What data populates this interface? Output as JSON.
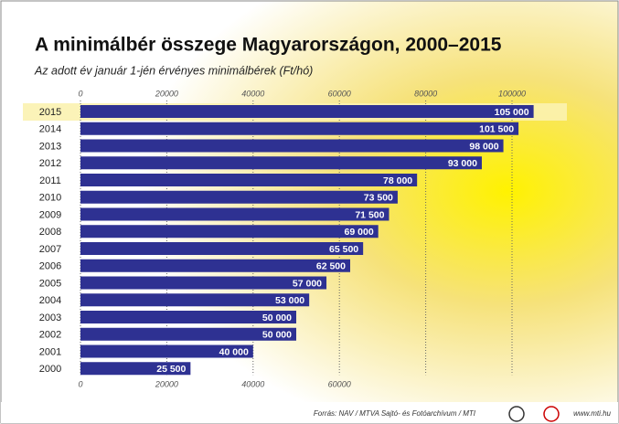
{
  "chart_data": {
    "type": "bar",
    "orientation": "horizontal",
    "title": "A minimálbér összege Magyarországon, 2000–2015",
    "subtitle": "Az adott év január 1-jén érvényes minimálbérek (Ft/hó)",
    "categories": [
      "2015",
      "2014",
      "2013",
      "2012",
      "2011",
      "2010",
      "2009",
      "2008",
      "2007",
      "2006",
      "2005",
      "2004",
      "2003",
      "2002",
      "2001",
      "2000"
    ],
    "values": [
      105000,
      101500,
      98000,
      93000,
      78000,
      73500,
      71500,
      69000,
      65500,
      62500,
      57000,
      53000,
      50000,
      50000,
      40000,
      25500
    ],
    "value_labels": [
      "105 000",
      "101 500",
      "98 000",
      "93 000",
      "78 000",
      "73 500",
      "71 500",
      "69 000",
      "65 500",
      "62 500",
      "57 000",
      "53 000",
      "50 000",
      "50 000",
      "40 000",
      "25 500"
    ],
    "color": "#2e3192",
    "xlim": [
      0,
      100000
    ],
    "xticks": [
      0,
      20000,
      40000,
      60000,
      80000,
      100000
    ],
    "grid": true,
    "source": "Forrás: NAV / MTVA Sajtó- és Fotóarchívum / MTI",
    "website": "www.mti.hu"
  }
}
